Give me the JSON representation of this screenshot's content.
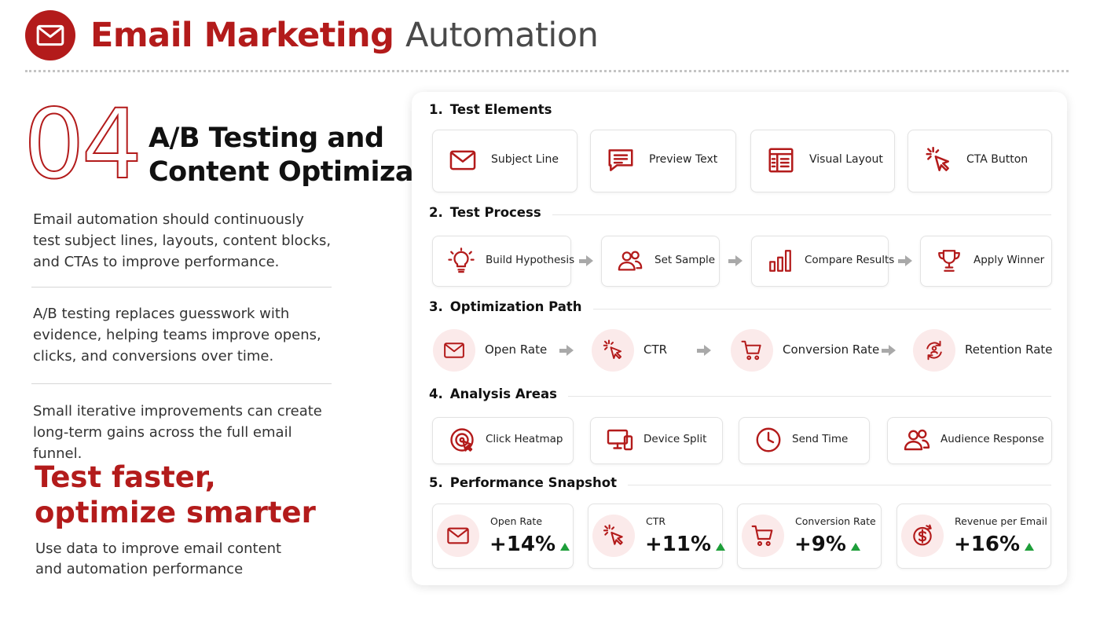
{
  "header": {
    "title_accent": "Email Marketing",
    "title_rest": "Automation"
  },
  "intro": {
    "number": "04",
    "title_line1": "A/B Testing and",
    "title_line2": "Content Optimization"
  },
  "paragraphs": [
    "Email automation should continuously test subject lines, layouts, content blocks, and CTAs to improve performance.",
    "A/B testing replaces guesswork with evidence, helping teams improve opens, clicks, and conversions over time.",
    "Small iterative improvements can create long-term gains across the full email funnel."
  ],
  "tagline": {
    "line1": "Test faster,",
    "line2": "optimize smarter"
  },
  "caption": "Use data to improve email content and automation performance",
  "sections": [
    {
      "number": "1.",
      "title": "Test Elements",
      "items": [
        "Subject Line",
        "Preview Text",
        "Visual Layout",
        "CTA Button"
      ]
    },
    {
      "number": "2.",
      "title": "Test Process",
      "items": [
        "Build Hypothesis",
        "Set Sample",
        "Compare Results",
        "Apply Winner"
      ]
    },
    {
      "number": "3.",
      "title": "Optimization Path",
      "items": [
        "Open Rate",
        "CTR",
        "Conversion Rate",
        "Retention Rate"
      ]
    },
    {
      "number": "4.",
      "title": "Analysis Areas",
      "items": [
        "Click Heatmap",
        "Device Split",
        "Send Time",
        "Audience Response"
      ]
    },
    {
      "number": "5.",
      "title": "Performance Snapshot",
      "metrics": [
        {
          "label": "Open Rate",
          "value": "+14%"
        },
        {
          "label": "CTR",
          "value": "+11%"
        },
        {
          "label": "Conversion Rate",
          "value": "+9%"
        },
        {
          "label": "Revenue per Email",
          "value": "+16%"
        }
      ]
    }
  ]
}
